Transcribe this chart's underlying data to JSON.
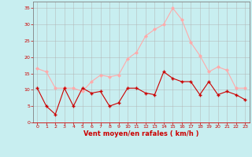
{
  "hours": [
    0,
    1,
    2,
    3,
    4,
    5,
    6,
    7,
    8,
    9,
    10,
    11,
    12,
    13,
    14,
    15,
    16,
    17,
    18,
    19,
    20,
    21,
    22,
    23
  ],
  "vent_moyen": [
    10.5,
    5,
    2.5,
    10.5,
    5,
    10.5,
    9,
    9.5,
    5,
    6,
    10.5,
    10.5,
    9,
    8.5,
    15.5,
    13.5,
    12.5,
    12.5,
    8.5,
    12.5,
    8.5,
    9.5,
    8.5,
    7
  ],
  "rafales": [
    16.5,
    15.5,
    10.5,
    10.5,
    10.5,
    9.5,
    12.5,
    14.5,
    14,
    14.5,
    19.5,
    21.5,
    26.5,
    28.5,
    30,
    35,
    31.5,
    24.5,
    20.5,
    15.5,
    17,
    16,
    10.5,
    10.5
  ],
  "moyen_color": "#cc0000",
  "rafales_color": "#ffaaaa",
  "bg_color": "#c8eef0",
  "grid_color": "#b0b0b0",
  "xlabel": "Vent moyen/en rafales ( km/h )",
  "xlabel_color": "#cc0000",
  "tick_color": "#cc0000",
  "ylim": [
    0,
    37
  ],
  "yticks": [
    0,
    5,
    10,
    15,
    20,
    25,
    30,
    35
  ],
  "xlim": [
    -0.5,
    23.5
  ],
  "spine_color": "#808080"
}
